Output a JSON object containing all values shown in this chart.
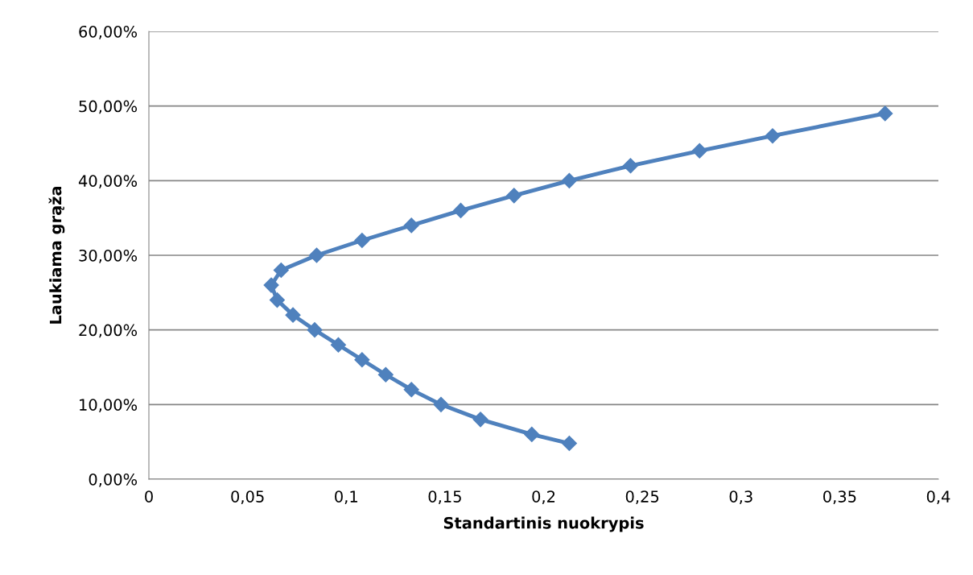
{
  "chart_data": {
    "type": "line",
    "xlabel": "Standartinis nuokrypis",
    "ylabel": "Laukiama grąža",
    "series": [
      {
        "color": "#4f81bd",
        "x": [
          0.213,
          0.194,
          0.168,
          0.148,
          0.133,
          0.12,
          0.108,
          0.096,
          0.084,
          0.073,
          0.065,
          0.062,
          0.067,
          0.085,
          0.108,
          0.133,
          0.158,
          0.185,
          0.213,
          0.244,
          0.279,
          0.316,
          0.373
        ],
        "values": [
          0.048,
          0.06,
          0.08,
          0.1,
          0.12,
          0.14,
          0.16,
          0.18,
          0.2,
          0.22,
          0.24,
          0.26,
          0.28,
          0.3,
          0.32,
          0.34,
          0.36,
          0.38,
          0.4,
          0.42,
          0.44,
          0.46,
          0.49
        ]
      }
    ],
    "xlim": [
      0,
      0.4
    ],
    "xticks": [
      {
        "value": 0,
        "label": "0"
      },
      {
        "value": 0.05,
        "label": "0,05"
      },
      {
        "value": 0.1,
        "label": "0,1"
      },
      {
        "value": 0.15,
        "label": "0,15"
      },
      {
        "value": 0.2,
        "label": "0,2"
      },
      {
        "value": 0.25,
        "label": "0,25"
      },
      {
        "value": 0.3,
        "label": "0,3"
      },
      {
        "value": 0.35,
        "label": "0,35"
      },
      {
        "value": 0.4,
        "label": "0,4"
      }
    ],
    "ylim": [
      0,
      0.6
    ],
    "yticks": [
      {
        "value": 0,
        "label": "0,00%"
      },
      {
        "value": 0.1,
        "label": "10,00%"
      },
      {
        "value": 0.2,
        "label": "20,00%"
      },
      {
        "value": 0.3,
        "label": "30,00%"
      },
      {
        "value": 0.4,
        "label": "40,00%"
      },
      {
        "value": 0.5,
        "label": "50,00%"
      },
      {
        "value": 0.6,
        "label": "60,00%"
      }
    ],
    "grid": "y",
    "marker": "diamond",
    "line_style": "solid"
  }
}
